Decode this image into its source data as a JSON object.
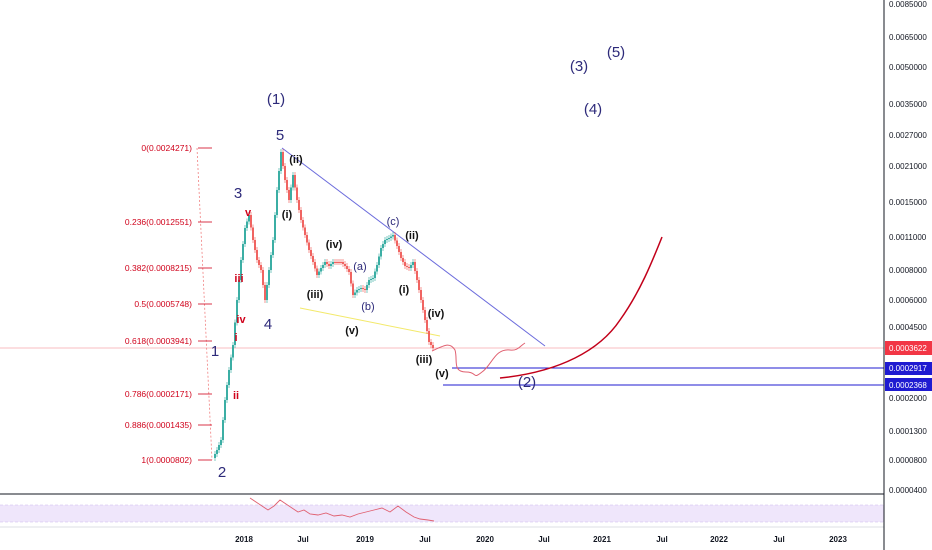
{
  "chart_data": {
    "type": "candlestick",
    "log_scale": true,
    "y_ticks": [
      "0.0085000",
      "0.0065000",
      "0.0050000",
      "0.0035000",
      "0.0027000",
      "0.0021000",
      "0.0015000",
      "0.0011000",
      "0.0008000",
      "0.0006000",
      "0.0004500",
      "0.0002000",
      "0.0001300",
      "0.0000800",
      "0.0000400"
    ],
    "x_ticks": [
      "2018",
      "Jul",
      "2019",
      "Jul",
      "2020",
      "Jul",
      "2021",
      "Jul",
      "2022",
      "Jul",
      "2023"
    ],
    "price_badges": [
      {
        "label": "0.0003622",
        "value": 0.0003622,
        "color": "#f23645"
      },
      {
        "label": "0.0002917",
        "value": 0.0002917,
        "color": "#1f1bd1"
      },
      {
        "label": "0.0002368",
        "value": 0.0002368,
        "color": "#1f1bd1"
      }
    ],
    "fib_levels": [
      {
        "label": "0(0.0024271)",
        "value": 0.0024271
      },
      {
        "label": "0.236(0.0012551)",
        "value": 0.0012551
      },
      {
        "label": "0.382(0.0008215)",
        "value": 0.0008215
      },
      {
        "label": "0.5(0.0005748)",
        "value": 0.0005748
      },
      {
        "label": "0.618(0.0003941)",
        "value": 0.0003941
      },
      {
        "label": "0.786(0.0002171)",
        "value": 0.0002171
      },
      {
        "label": "0.886(0.0001435)",
        "value": 0.0001435
      },
      {
        "label": "1(0.0000802)",
        "value": 8.02e-05
      }
    ],
    "wave_labels": {
      "primary": [
        "(1)",
        "(2)",
        "(3)",
        "(4)",
        "(5)"
      ],
      "impulse": [
        "1",
        "2",
        "3",
        "4",
        "5"
      ],
      "minor_red": [
        "i",
        "ii",
        "iii",
        "iv",
        "v"
      ],
      "minor": [
        "(i)",
        "(ii)",
        "(iii)",
        "(iv)",
        "(v)",
        "(a)",
        "(b)",
        "(c)",
        "(i)",
        "(ii)",
        "(iii)",
        "(iv)",
        "(v)"
      ]
    }
  }
}
